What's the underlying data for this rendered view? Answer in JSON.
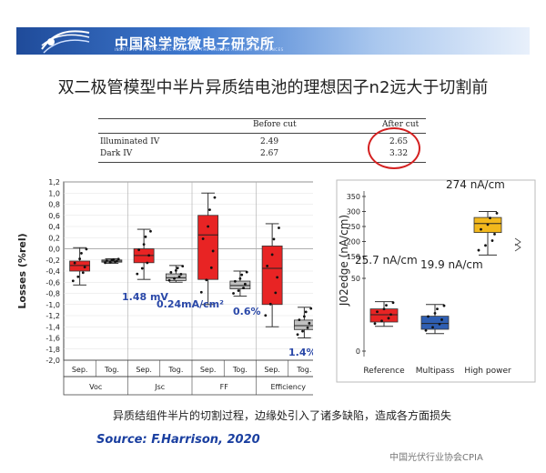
{
  "header": {
    "institute_name": "中国科学院微电子研究所",
    "institute_sub": "INSTITUTE OF MICROELECTRONICS OF THE CHINESE ACADEMY OF SCIENCES"
  },
  "slide_title": "双二极管模型中半片异质结电池的理想因子n2远大于切割前",
  "table": {
    "headers": [
      "",
      "Before cut",
      "After cut"
    ],
    "rows": [
      [
        "Illuminated IV",
        "2.49",
        "2.65"
      ],
      [
        "Dark IV",
        "2.67",
        "3.32"
      ]
    ]
  },
  "caption": "异质结组件半片的切割过程，边缘处引入了诸多缺陷，造成各方面损失",
  "source": "Source: F.Harrison, 2020",
  "watermark": "中国光伏行业协会CPIA",
  "chart_data": [
    {
      "type": "box",
      "ylabel": "Losses (%rel)",
      "ylim": [
        -2.0,
        1.2
      ],
      "yticks": [
        "1,2",
        "1,0",
        "0,8",
        "0,6",
        "0,4",
        "0,2",
        "0,0",
        "-0,2",
        "-0,4",
        "-0,6",
        "-0,8",
        "-1,0",
        "-1,2",
        "-1,4",
        "-1,6",
        "-1,8",
        "-2,0"
      ],
      "groups": [
        "Voc",
        "Jsc",
        "FF",
        "Efficiency"
      ],
      "subgroups": [
        "Sep.",
        "Tog.",
        "Sep.",
        "Tog.",
        "Sep.",
        "Tog.",
        "Sep.",
        "Tog."
      ],
      "boxes": [
        {
          "label": "Sep.",
          "group": "Voc",
          "color": "#e82424",
          "whisker_low": -0.65,
          "q1": -0.4,
          "median": -0.3,
          "q3": -0.22,
          "whisker_high": 0.02
        },
        {
          "label": "Tog.",
          "group": "Voc",
          "color": "#c0c0c0",
          "whisker_low": -0.26,
          "q1": -0.24,
          "median": -0.22,
          "q3": -0.2,
          "whisker_high": -0.18
        },
        {
          "label": "Sep.",
          "group": "Jsc",
          "color": "#e82424",
          "whisker_low": -0.55,
          "q1": -0.25,
          "median": -0.12,
          "q3": 0.0,
          "whisker_high": 0.35
        },
        {
          "label": "Tog.",
          "group": "Jsc",
          "color": "#c0c0c0",
          "whisker_low": -0.6,
          "q1": -0.57,
          "median": -0.52,
          "q3": -0.45,
          "whisker_high": -0.3
        },
        {
          "label": "Sep.",
          "group": "FF",
          "color": "#e82424",
          "whisker_low": -1.0,
          "q1": -0.55,
          "median": 0.25,
          "q3": 0.6,
          "whisker_high": 1.0
        },
        {
          "label": "Tog.",
          "group": "FF",
          "color": "#c0c0c0",
          "whisker_low": -0.85,
          "q1": -0.72,
          "median": -0.66,
          "q3": -0.58,
          "whisker_high": -0.4
        },
        {
          "label": "Sep.",
          "group": "Efficiency",
          "color": "#e82424",
          "whisker_low": -1.4,
          "q1": -1.0,
          "median": -0.35,
          "q3": 0.05,
          "whisker_high": 0.45
        },
        {
          "label": "Tog.",
          "group": "Efficiency",
          "color": "#c0c0c0",
          "whisker_low": -1.6,
          "q1": -1.45,
          "median": -1.38,
          "q3": -1.28,
          "whisker_high": -1.05
        }
      ],
      "annotations": [
        "1.48 mV",
        "0.24mA/cm²",
        "0.6%",
        "1.4%"
      ]
    },
    {
      "type": "box",
      "ylabel": "J02edge (nA/cm)",
      "yticks": [
        "0",
        "50",
        "100",
        "150",
        "200",
        "250",
        "300",
        "350"
      ],
      "categories": [
        "Reference",
        "Multipass",
        "High power"
      ],
      "boxes": [
        {
          "label": "Reference",
          "color": "#e82424",
          "whisker_low": 17,
          "q1": 20,
          "median": 25,
          "q3": 29,
          "whisker_high": 34
        },
        {
          "label": "Multipass",
          "color": "#2f5fb3",
          "whisker_low": 12,
          "q1": 15,
          "median": 19,
          "q3": 24,
          "whisker_high": 32
        },
        {
          "label": "High power",
          "color": "#f2b81c",
          "whisker_low": 155,
          "q1": 230,
          "median": 260,
          "q3": 280,
          "whisker_high": 300
        }
      ],
      "annotations": [
        "25.7 nA/cm",
        "19.9 nA/cm",
        "274 nA/cm"
      ]
    }
  ]
}
